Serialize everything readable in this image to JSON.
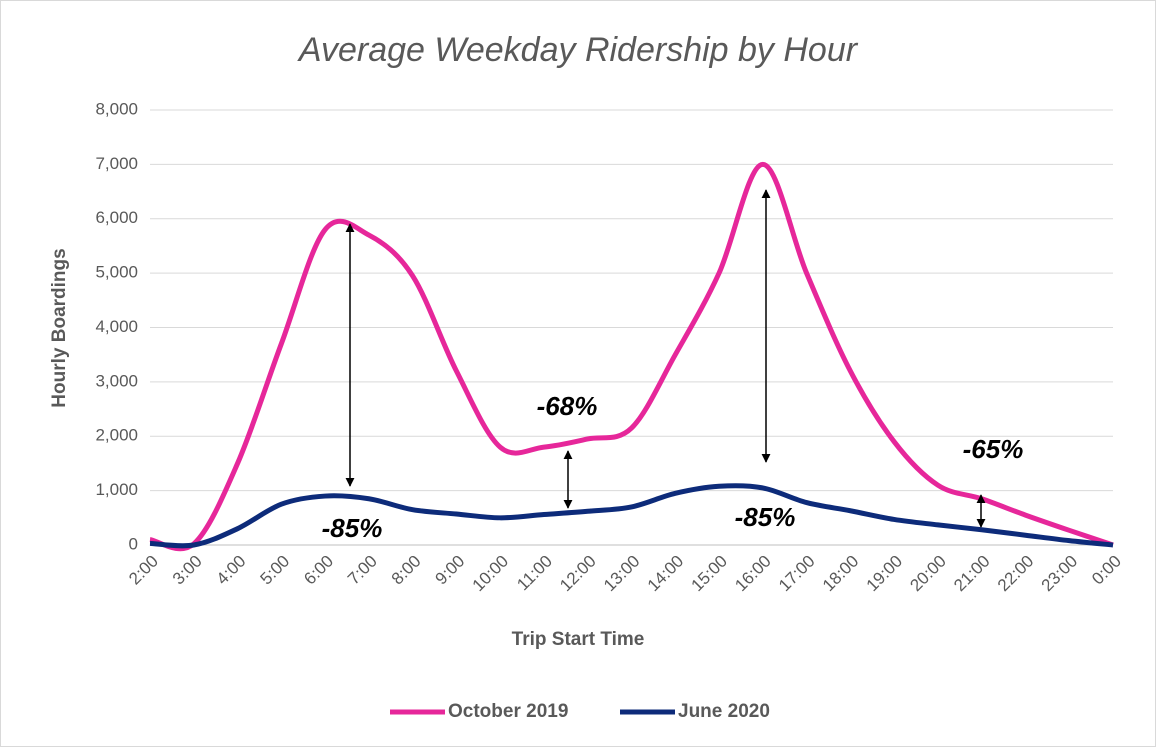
{
  "chart_data": {
    "type": "line",
    "title": "Average Weekday Ridership by Hour",
    "x_label": "Trip Start Time",
    "y_label": "Hourly Boardings",
    "categories": [
      "2:00",
      "3:00",
      "4:00",
      "5:00",
      "6:00",
      "7:00",
      "8:00",
      "9:00",
      "10:00",
      "11:00",
      "12:00",
      "13:00",
      "14:00",
      "15:00",
      "16:00",
      "17:00",
      "18:00",
      "19:00",
      "20:00",
      "21:00",
      "22:00",
      "23:00",
      "0:00"
    ],
    "series": [
      {
        "name": "October 2019",
        "color": "#e6279a",
        "values": [
          100,
          20,
          1500,
          3700,
          5800,
          5700,
          4950,
          3200,
          1800,
          1800,
          1950,
          2150,
          3500,
          5000,
          7000,
          5000,
          3200,
          1900,
          1100,
          850,
          550,
          270,
          0
        ]
      },
      {
        "name": "June 2020",
        "color": "#0d2b7a",
        "values": [
          30,
          0,
          300,
          750,
          900,
          850,
          650,
          570,
          500,
          560,
          620,
          700,
          950,
          1080,
          1050,
          780,
          630,
          470,
          370,
          280,
          180,
          80,
          0
        ]
      }
    ],
    "ylim": [
      0,
      8000
    ],
    "yticks": [
      0,
      {
        "value": 1000,
        "label": "1,000"
      },
      {
        "value": 2000,
        "label": "2,000"
      },
      {
        "value": 3000,
        "label": "3,000"
      },
      {
        "value": 4000,
        "label": "4,000"
      },
      {
        "value": 5000,
        "label": "5,000"
      },
      {
        "value": 6000,
        "label": "6,000"
      },
      {
        "value": 7000,
        "label": "7,000"
      },
      {
        "value": 8000,
        "label": "8,000"
      }
    ],
    "grid": true,
    "legend": "bottom",
    "annotations": [
      "-85%",
      "-68%",
      "-85%",
      "-65%"
    ]
  }
}
